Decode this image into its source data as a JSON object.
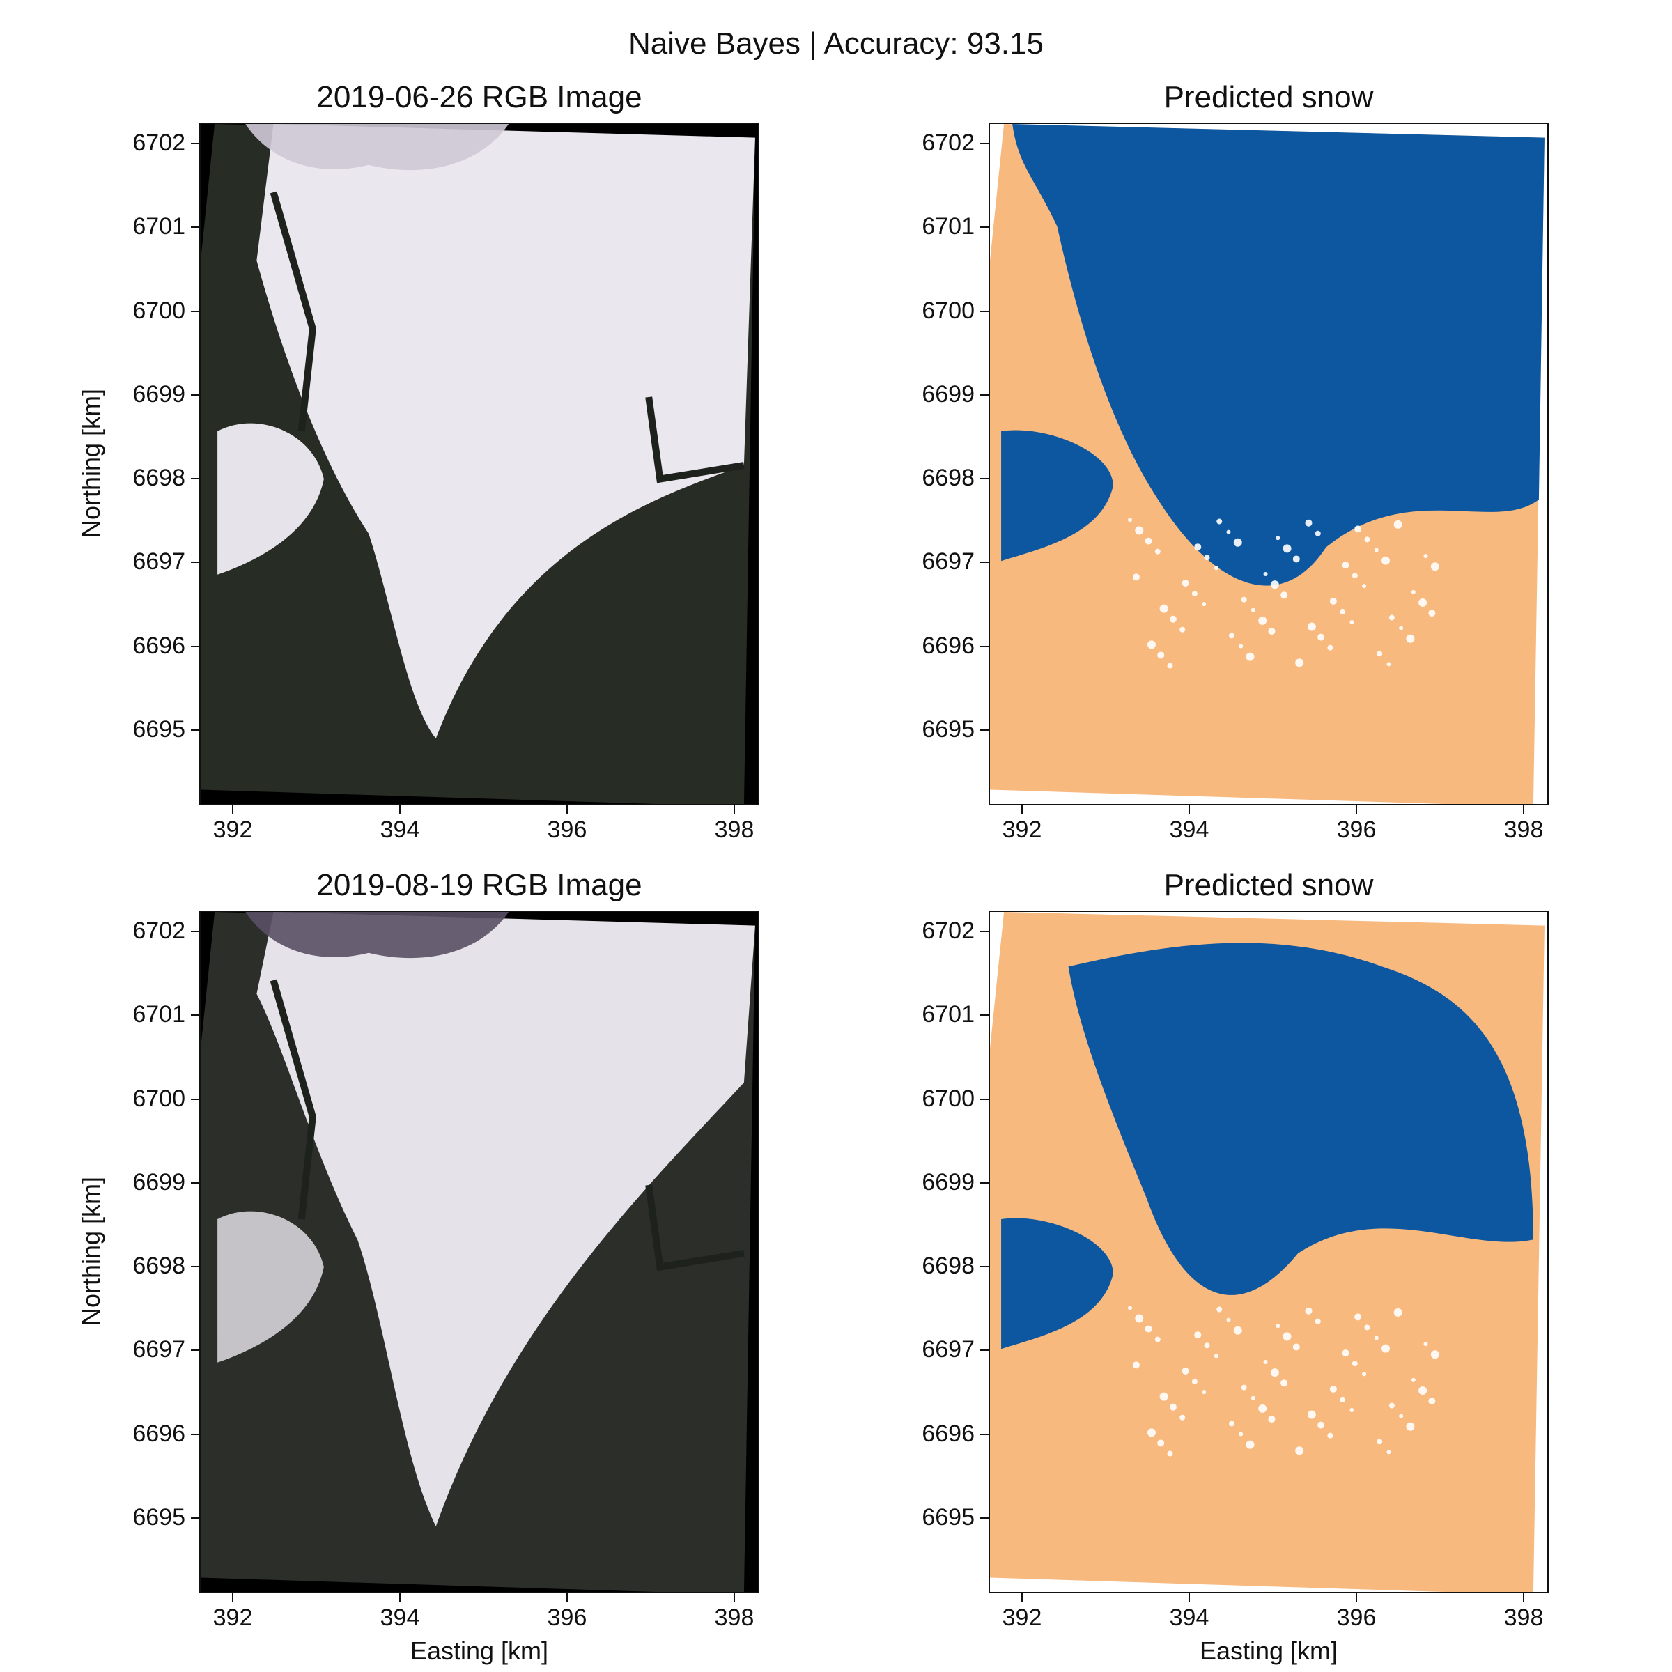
{
  "figure": {
    "suptitle": "Naive Bayes | Accuracy: 93.15",
    "colors": {
      "snow": "#0d57a0",
      "no_snow": "#f8b97f",
      "background": "#000000",
      "rock": "#2a2f28"
    }
  },
  "panels": [
    {
      "title": "2019-06-26 RGB Image",
      "kind": "rgb",
      "ylabel": "Northing [km]",
      "xlabel": ""
    },
    {
      "title": "Predicted snow",
      "kind": "prediction",
      "ylabel": "",
      "xlabel": ""
    },
    {
      "title": "2019-08-19 RGB Image",
      "kind": "rgb",
      "ylabel": "Northing [km]",
      "xlabel": "Easting [km]"
    },
    {
      "title": "Predicted snow",
      "kind": "prediction",
      "ylabel": "",
      "xlabel": "Easting [km]"
    }
  ],
  "axes": {
    "x_ticks": [
      "392",
      "394",
      "396",
      "398"
    ],
    "y_ticks": [
      "6702",
      "6701",
      "6700",
      "6699",
      "6698",
      "6697",
      "6696",
      "6695"
    ],
    "x_range": [
      391.6,
      398.3
    ],
    "y_range": [
      6694.1,
      6702.25
    ]
  }
}
